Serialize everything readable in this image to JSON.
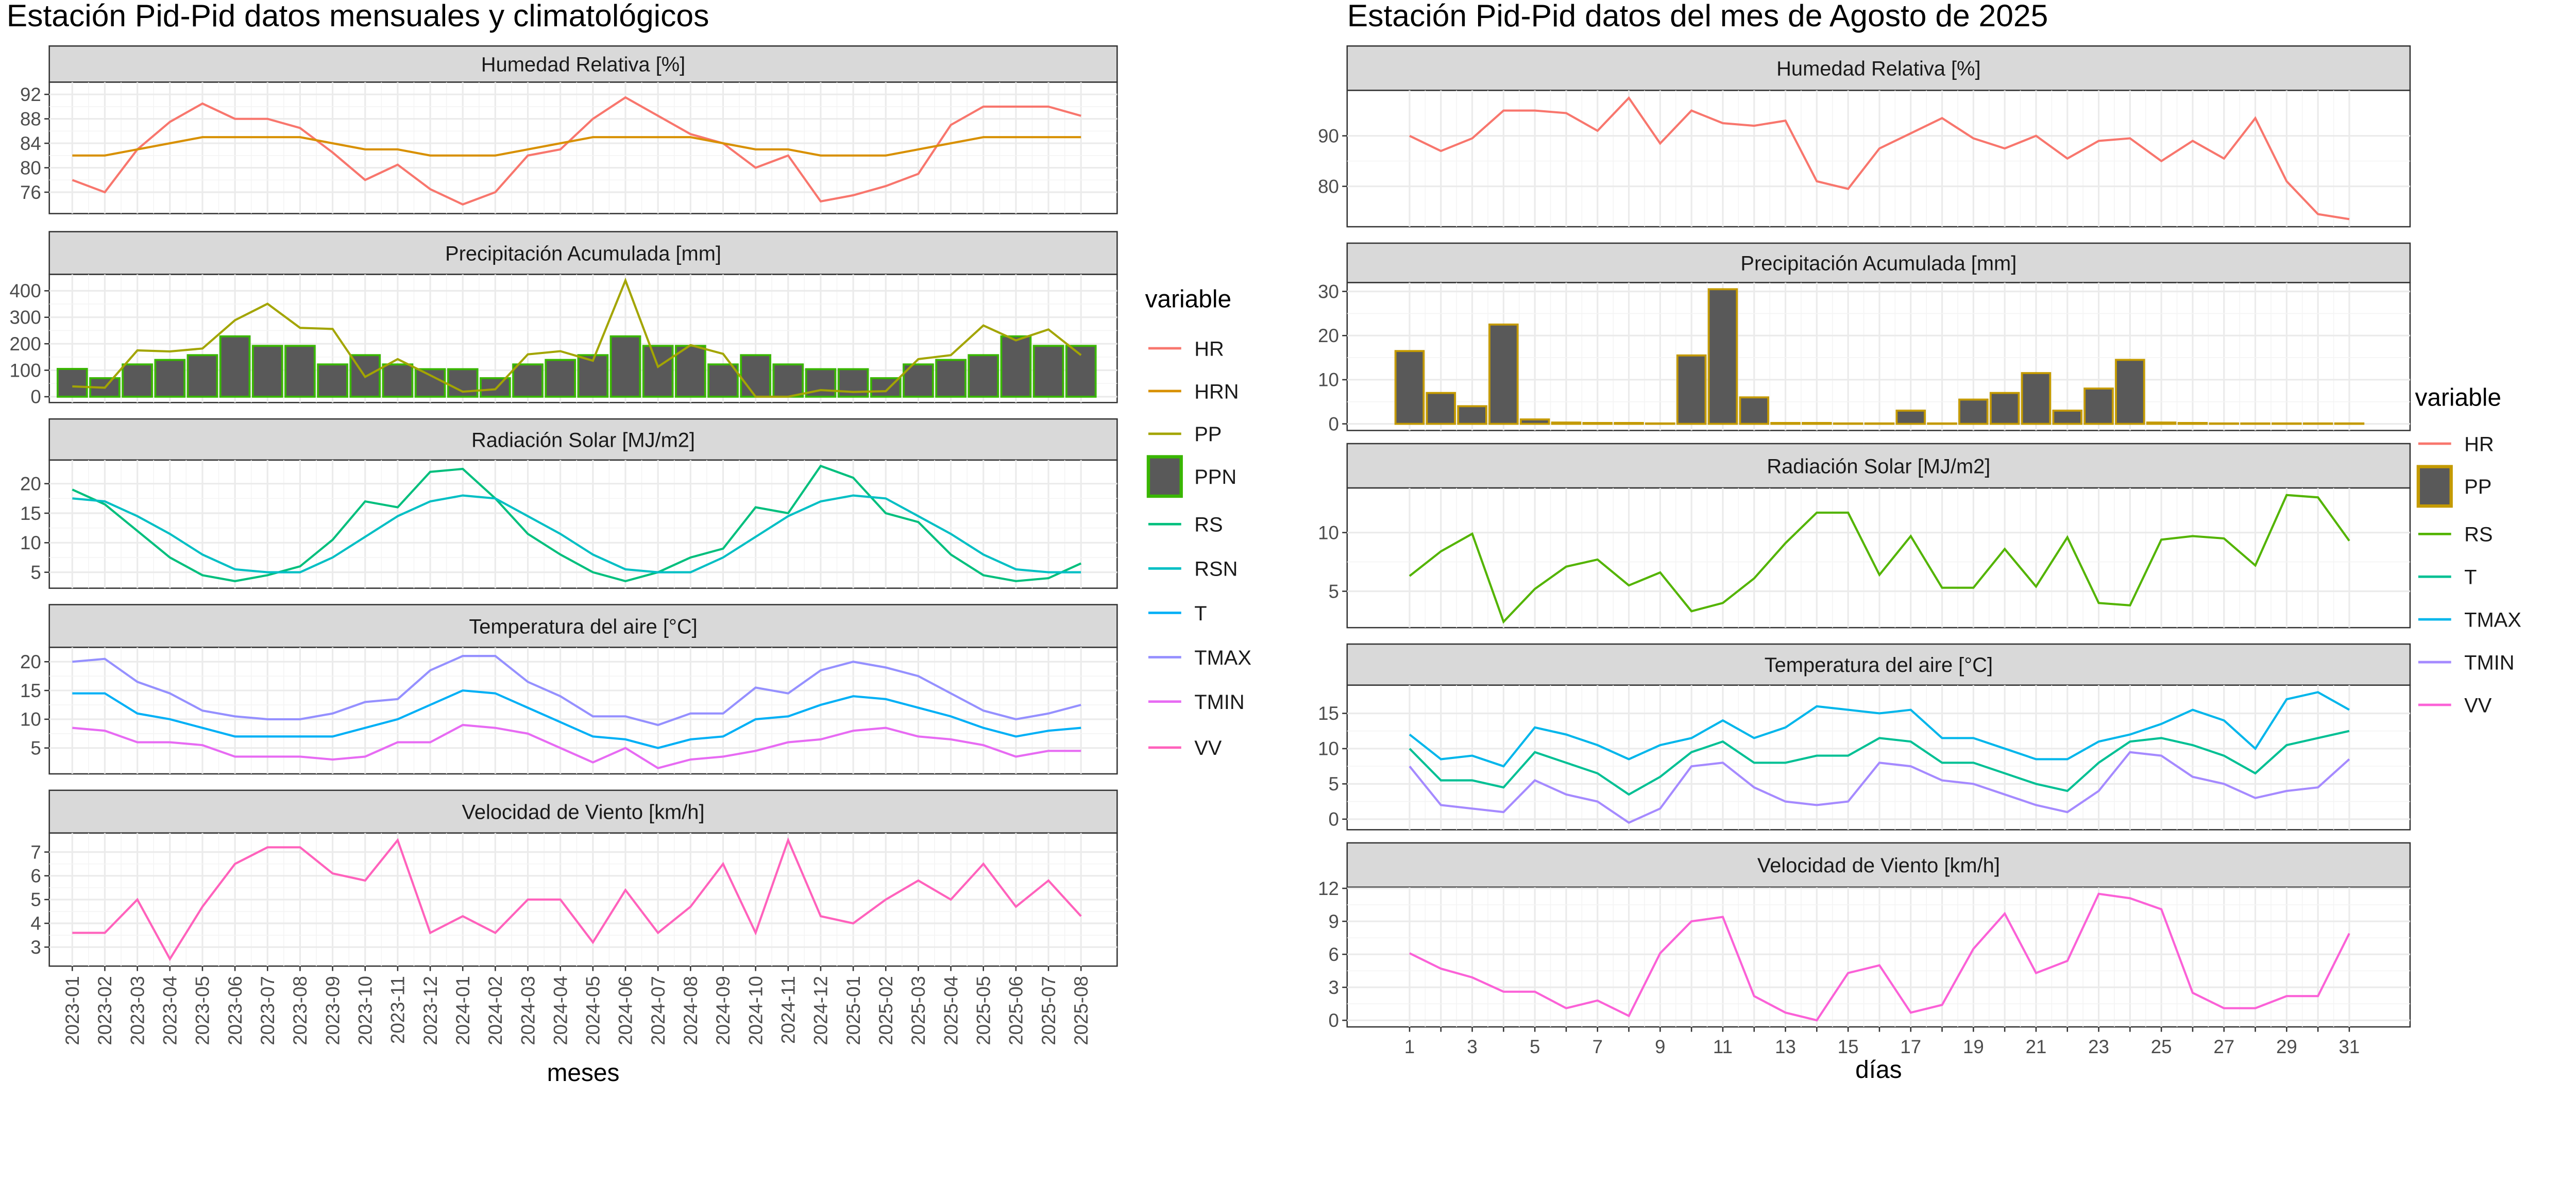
{
  "chart_data": [
    {
      "type": "line",
      "title": "Estación Pid-Pid datos mensuales y climatológicos",
      "xlabel": "meses",
      "categories": [
        "2023-01",
        "2023-02",
        "2023-03",
        "2023-04",
        "2023-05",
        "2023-06",
        "2023-07",
        "2023-08",
        "2023-09",
        "2023-10",
        "2023-11",
        "2023-12",
        "2024-01",
        "2024-02",
        "2024-03",
        "2024-04",
        "2024-05",
        "2024-06",
        "2024-07",
        "2024-08",
        "2024-09",
        "2024-10",
        "2024-11",
        "2024-12",
        "2025-01",
        "2025-02",
        "2025-03",
        "2025-04",
        "2025-05",
        "2025-06",
        "2025-07",
        "2025-08"
      ],
      "legend": {
        "title": "variable",
        "position": "right",
        "entries": [
          "HR",
          "HRN",
          "PP",
          "PPN",
          "RS",
          "RSN",
          "T",
          "TMAX",
          "TMIN",
          "VV"
        ]
      },
      "colors": {
        "HR": "#F8766D",
        "HRN": "#D89000",
        "PP": "#A3A500",
        "PPN": "#39B600",
        "RS": "#00BF7D",
        "RSN": "#00BFC4",
        "T": "#00B0F6",
        "TMAX": "#9590FF",
        "TMIN": "#E76BF3",
        "VV": "#FF62BC",
        "bar_fill": "#595959"
      },
      "grid": true,
      "panels": [
        {
          "strip": "Humedad Relativa [%]",
          "ylim": [
            72.5,
            94
          ],
          "yticks": [
            76,
            80,
            84,
            88,
            92
          ],
          "series": [
            {
              "name": "HR",
              "values": [
                78,
                76,
                83,
                87.5,
                90.5,
                88,
                88,
                86.5,
                82.5,
                78,
                80.5,
                76.5,
                74,
                76,
                82,
                83,
                88,
                91.5,
                88.5,
                85.5,
                84,
                80,
                82,
                74.5,
                75.5,
                77,
                79,
                87,
                90,
                90,
                90,
                88.5
              ]
            },
            {
              "name": "HRN",
              "values": [
                82,
                82,
                83,
                84,
                85,
                85,
                85,
                85,
                84,
                83,
                83,
                82,
                82,
                82,
                83,
                84,
                85,
                85,
                85,
                85,
                84,
                83,
                83,
                82,
                82,
                82,
                83,
                84,
                85,
                85,
                85,
                85
              ]
            }
          ]
        },
        {
          "strip": "Precipitación Acumulada [mm]",
          "ylim": [
            -22,
            462
          ],
          "yticks": [
            0,
            100,
            200,
            300,
            400
          ],
          "bars": {
            "name": "PPN",
            "values": [
              105,
              70,
              122,
              139,
              157,
              228,
              192,
              192,
              122,
              157,
              122,
              104,
              104,
              70,
              122,
              139,
              157,
              228,
              192,
              192,
              122,
              157,
              122,
              104,
              104,
              70,
              122,
              139,
              157,
              228,
              192,
              192
            ]
          },
          "series": [
            {
              "name": "PP",
              "values": [
                39,
                34,
                175,
                171,
                182,
                289,
                351,
                260,
                256,
                75,
                142,
                81,
                19,
                28,
                160,
                172,
                136,
                439,
                113,
                195,
                162,
                0,
                0,
                25,
                18,
                21,
                142,
                157,
                269,
                213,
                254,
                157
              ]
            }
          ]
        },
        {
          "strip": "Radiación Solar [MJ/m2]",
          "ylim": [
            2.3,
            24
          ],
          "yticks": [
            5,
            10,
            15,
            20
          ],
          "series": [
            {
              "name": "RS",
              "values": [
                19,
                16.5,
                12,
                7.5,
                4.5,
                3.5,
                4.5,
                6,
                10.5,
                17,
                16,
                22,
                22.5,
                17.5,
                11.5,
                8,
                5,
                3.5,
                5,
                7.5,
                9,
                16,
                15,
                23,
                21,
                15,
                13.5,
                8,
                4.5,
                3.5,
                4,
                6.5
              ]
            },
            {
              "name": "RSN",
              "values": [
                17.5,
                17,
                14.5,
                11.5,
                8,
                5.5,
                5,
                5,
                7.5,
                11,
                14.5,
                17,
                18,
                17.5,
                14.5,
                11.5,
                8,
                5.5,
                5,
                5,
                7.5,
                11,
                14.5,
                17,
                18,
                17.5,
                14.5,
                11.5,
                8,
                5.5,
                5,
                5
              ]
            }
          ]
        },
        {
          "strip": "Temperatura del aire [°C]",
          "ylim": [
            0.5,
            22.5
          ],
          "yticks": [
            5,
            10,
            15,
            20
          ],
          "series": [
            {
              "name": "T",
              "values": [
                14.5,
                14.5,
                11,
                10,
                8.5,
                7,
                7,
                7,
                7,
                8.5,
                10,
                12.5,
                15,
                14.5,
                12,
                9.5,
                7,
                6.5,
                5,
                6.5,
                7,
                10,
                10.5,
                12.5,
                14,
                13.5,
                12,
                10.5,
                8.5,
                7,
                8,
                8.5
              ]
            },
            {
              "name": "TMAX",
              "values": [
                20,
                20.5,
                16.5,
                14.5,
                11.5,
                10.5,
                10,
                10,
                11,
                13,
                13.5,
                18.5,
                21,
                21,
                16.5,
                14,
                10.5,
                10.5,
                9,
                11,
                11,
                15.5,
                14.5,
                18.5,
                20,
                19,
                17.5,
                14.5,
                11.5,
                10,
                11,
                12.5
              ]
            },
            {
              "name": "TMIN",
              "values": [
                8.5,
                8,
                6,
                6,
                5.5,
                3.5,
                3.5,
                3.5,
                3,
                3.5,
                6,
                6,
                9,
                8.5,
                7.5,
                5,
                2.5,
                5,
                1.5,
                3,
                3.5,
                4.5,
                6,
                6.5,
                8,
                8.5,
                7,
                6.5,
                5.5,
                3.5,
                4.5,
                4.5
              ]
            }
          ]
        },
        {
          "strip": "Velocidad de Viento [km/h]",
          "ylim": [
            2.2,
            7.8
          ],
          "yticks": [
            3,
            4,
            5,
            6,
            7
          ],
          "series": [
            {
              "name": "VV",
              "values": [
                3.6,
                3.6,
                5,
                2.5,
                4.7,
                6.5,
                7.2,
                7.2,
                6.1,
                5.8,
                7.5,
                3.6,
                4.3,
                3.6,
                5,
                5,
                3.2,
                5.4,
                3.6,
                4.7,
                6.5,
                3.6,
                7.5,
                4.3,
                4,
                5,
                5.8,
                5,
                6.5,
                4.7,
                5.8,
                4.3
              ]
            }
          ]
        }
      ]
    },
    {
      "type": "line",
      "title": "Estación Pid-Pid datos del mes de Agosto de 2025",
      "xlabel": "días",
      "categories": [
        1,
        2,
        3,
        4,
        5,
        6,
        7,
        8,
        9,
        10,
        11,
        12,
        13,
        14,
        15,
        16,
        17,
        18,
        19,
        20,
        21,
        22,
        23,
        24,
        25,
        26,
        27,
        28,
        29,
        30,
        31
      ],
      "xticklabels": [
        "1",
        "3",
        "5",
        "7",
        "9",
        "11",
        "13",
        "15",
        "17",
        "19",
        "21",
        "23",
        "25",
        "27",
        "29",
        "31"
      ],
      "legend": {
        "title": "variable",
        "position": "right",
        "entries": [
          "HR",
          "PP",
          "RS",
          "T",
          "TMAX",
          "TMIN",
          "VV"
        ]
      },
      "colors": {
        "HR": "#F8766D",
        "PP": "#C49A00",
        "RS": "#53B400",
        "T": "#00C094",
        "TMAX": "#00B6EB",
        "TMIN": "#A58AFF",
        "VV": "#FB61D7",
        "bar_fill": "#595959"
      },
      "grid": true,
      "panels": [
        {
          "strip": "Humedad Relativa [%]",
          "ylim": [
            72,
            99
          ],
          "yticks": [
            80,
            90
          ],
          "series": [
            {
              "name": "HR",
              "values": [
                90,
                87,
                89.5,
                95,
                95,
                94.5,
                91,
                97.5,
                88.5,
                95,
                92.5,
                92,
                93,
                81,
                79.5,
                87.5,
                90.5,
                93.5,
                89.5,
                87.5,
                90,
                85.5,
                89,
                89.5,
                85,
                89,
                85.5,
                93.5,
                81,
                74.5,
                73.5
              ]
            }
          ]
        },
        {
          "strip": "Precipitación Acumulada [mm]",
          "ylim": [
            -1.5,
            32
          ],
          "yticks": [
            0,
            10,
            20,
            30
          ],
          "bars": {
            "name": "PP",
            "values": [
              16.5,
              7,
              4,
              22.5,
              1,
              0.3,
              0.2,
              0.2,
              0.1,
              15.5,
              30.5,
              6,
              0.2,
              0.2,
              0.1,
              0.1,
              3,
              0.1,
              5.5,
              7,
              11.5,
              3,
              8,
              14.5,
              0.3,
              0.2,
              0.1,
              0.1,
              0.1,
              0.1,
              0.1
            ]
          }
        },
        {
          "strip": "Radiación Solar [MJ/m2]",
          "ylim": [
            1.9,
            13.8
          ],
          "yticks": [
            5,
            10
          ],
          "series": [
            {
              "name": "RS",
              "values": [
                6.3,
                8.4,
                9.9,
                2.4,
                5.2,
                7.1,
                7.7,
                5.5,
                6.6,
                3.3,
                4,
                6.1,
                9.1,
                11.7,
                11.7,
                6.4,
                9.7,
                5.3,
                5.3,
                8.6,
                5.4,
                9.6,
                4,
                3.8,
                9.4,
                9.7,
                9.5,
                7.2,
                13.2,
                13,
                9.3
              ]
            }
          ]
        },
        {
          "strip": "Temperatura del aire [°C]",
          "ylim": [
            -1.5,
            19
          ],
          "yticks": [
            0,
            5,
            10,
            15
          ],
          "series": [
            {
              "name": "T",
              "values": [
                10,
                5.5,
                5.5,
                4.5,
                9.5,
                8,
                6.5,
                3.5,
                6,
                9.5,
                11,
                8,
                8,
                9,
                9,
                11.5,
                11,
                8,
                8,
                6.5,
                5,
                4,
                8,
                11,
                11.5,
                10.5,
                9,
                6.5,
                10.5,
                11.5,
                12.5
              ]
            },
            {
              "name": "TMAX",
              "values": [
                12,
                8.5,
                9,
                7.5,
                13,
                12,
                10.5,
                8.5,
                10.5,
                11.5,
                14,
                11.5,
                13,
                16,
                15.5,
                15,
                15.5,
                11.5,
                11.5,
                10,
                8.5,
                8.5,
                11,
                12,
                13.5,
                15.5,
                14,
                10,
                17,
                18,
                15.5
              ]
            },
            {
              "name": "TMIN",
              "values": [
                7.5,
                2,
                1.5,
                1,
                5.5,
                3.5,
                2.5,
                -0.5,
                1.5,
                7.5,
                8,
                4.5,
                2.5,
                2,
                2.5,
                8,
                7.5,
                5.5,
                5,
                3.5,
                2,
                1,
                4,
                9.5,
                9,
                6,
                5,
                3,
                4,
                4.5,
                8.5
              ]
            }
          ]
        },
        {
          "strip": "Velocidad de Viento [km/h]",
          "ylim": [
            -0.6,
            12.1
          ],
          "yticks": [
            0,
            3,
            6,
            9,
            12
          ],
          "series": [
            {
              "name": "VV",
              "values": [
                6.1,
                4.7,
                3.9,
                2.6,
                2.6,
                1.1,
                1.8,
                0.4,
                6.1,
                9,
                9.4,
                2.2,
                0.7,
                0,
                4.3,
                5,
                0.7,
                1.4,
                6.5,
                9.7,
                4.3,
                5.4,
                11.5,
                11.1,
                10.1,
                2.5,
                1.1,
                1.1,
                2.2,
                2.2,
                7.9
              ]
            }
          ]
        }
      ]
    }
  ]
}
